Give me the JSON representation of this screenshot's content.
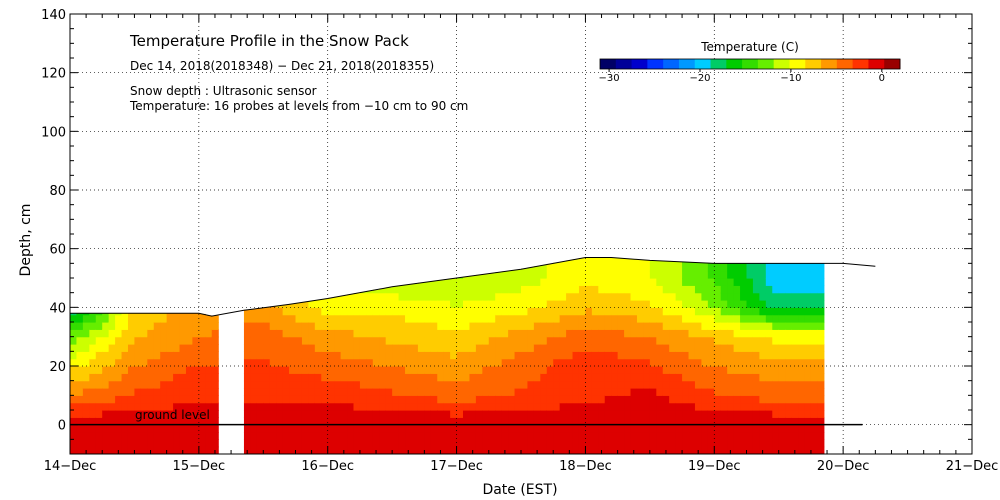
{
  "chart_data": {
    "type": "heatmap",
    "title": "Temperature Profile in the Snow Pack",
    "subtitle": "Dec 14, 2018(2018348) − Dec 21, 2018(2018355)",
    "info_lines": [
      "Snow depth : Ultrasonic sensor",
      "Temperature: 16 probes at levels from −10 cm to 90 cm"
    ],
    "xlabel": "Date (EST)",
    "ylabel": "Depth, cm",
    "x_tick_labels": [
      "14−Dec",
      "15−Dec",
      "16−Dec",
      "17−Dec",
      "18−Dec",
      "19−Dec",
      "20−Dec",
      "21−Dec"
    ],
    "x_range_days": [
      0,
      7
    ],
    "y_tick_labels": [
      "0",
      "20",
      "40",
      "60",
      "80",
      "100",
      "120",
      "140"
    ],
    "y_tick_values": [
      0,
      20,
      40,
      60,
      80,
      100,
      120,
      140
    ],
    "ylim": [
      -10,
      140
    ],
    "grid": true,
    "annotation": "ground level",
    "ground_level": 0,
    "colorbar": {
      "title": "Temperature (C)",
      "tick_labels": [
        "−30",
        "−20",
        "−10",
        "0"
      ],
      "tick_values": [
        -30,
        -20,
        -10,
        0
      ],
      "range": [
        -31,
        2
      ],
      "colors": [
        "#000066",
        "#000099",
        "#0000cc",
        "#0033ff",
        "#0066ff",
        "#0099ff",
        "#00ccff",
        "#00cc66",
        "#00cc00",
        "#33dd00",
        "#66ee00",
        "#ccff00",
        "#ffff00",
        "#ffcc00",
        "#ff9900",
        "#ff6600",
        "#ff3300",
        "#dd0000",
        "#990000"
      ]
    },
    "data_gaps_days": [
      [
        1.15,
        1.35
      ],
      [
        5.85,
        7
      ]
    ],
    "snow_depth_cm": [
      [
        0.0,
        38
      ],
      [
        0.3,
        38
      ],
      [
        0.6,
        38
      ],
      [
        1.0,
        38
      ],
      [
        1.1,
        37
      ],
      [
        1.35,
        39
      ],
      [
        1.7,
        41
      ],
      [
        2.0,
        43
      ],
      [
        2.5,
        47
      ],
      [
        3.0,
        50
      ],
      [
        3.5,
        53
      ],
      [
        4.0,
        57
      ],
      [
        4.2,
        57
      ],
      [
        4.5,
        56
      ],
      [
        5.0,
        55
      ],
      [
        5.5,
        55
      ],
      [
        6.0,
        55
      ],
      [
        6.25,
        54
      ]
    ],
    "temperature_grid": {
      "time_days": [
        0.0,
        0.5,
        1.0,
        1.5,
        2.0,
        2.5,
        3.0,
        3.5,
        4.0,
        4.5,
        5.0,
        5.5
      ],
      "depth_cm": [
        -10,
        0,
        10,
        20,
        30,
        40,
        50
      ],
      "values_c": [
        [
          0,
          0,
          0,
          0,
          0,
          0,
          0,
          0,
          0,
          0,
          0,
          0
        ],
        [
          0,
          0,
          0,
          0,
          0,
          0,
          0,
          0,
          0,
          0,
          0,
          0
        ],
        [
          -5,
          -3,
          -2,
          -2,
          -2,
          -3,
          -4,
          -3,
          -2,
          -1,
          -3,
          -4
        ],
        [
          -9,
          -5,
          -3,
          -3,
          -4,
          -5,
          -6,
          -4,
          -2,
          -3,
          -5,
          -6
        ],
        [
          -13,
          -7,
          -5,
          -4,
          -6,
          -7,
          -8,
          -6,
          -4,
          -5,
          -7,
          -9
        ],
        [
          -20,
          -8,
          -6,
          -6,
          -9,
          -9,
          -10,
          -9,
          -7,
          -8,
          -12,
          -18
        ],
        [
          -25,
          -10,
          -7,
          -7,
          -11,
          -12,
          -12,
          -11,
          -9,
          -10,
          -14,
          -20
        ]
      ]
    }
  }
}
